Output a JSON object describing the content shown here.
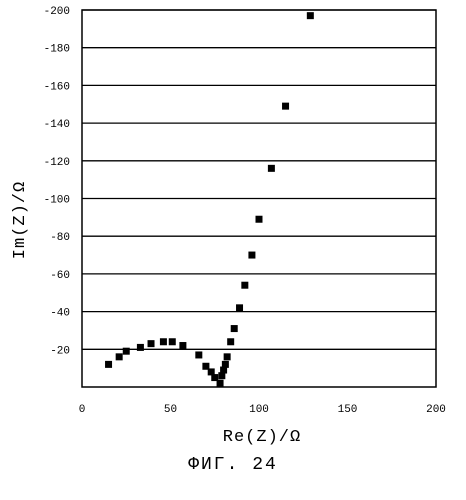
{
  "caption": "ФИГ. 24",
  "chart_data": {
    "type": "scatter",
    "title": "",
    "xlabel": "Re(Z)/Ω",
    "ylabel": "Im(Z)/Ω",
    "xlim": [
      0,
      200
    ],
    "ylim": [
      0,
      -200
    ],
    "y_axis_inverted": true,
    "grid": "horizontal",
    "x_ticks": [
      {
        "value": 0,
        "label": "0"
      },
      {
        "value": 50,
        "label": "50"
      },
      {
        "value": 100,
        "label": "100"
      },
      {
        "value": 150,
        "label": "150"
      },
      {
        "value": 200,
        "label": "200"
      }
    ],
    "y_ticks": [
      {
        "value": -20,
        "label": "-20"
      },
      {
        "value": -40,
        "label": "-40"
      },
      {
        "value": -60,
        "label": "-60"
      },
      {
        "value": -80,
        "label": "-80"
      },
      {
        "value": -100,
        "label": "-100"
      },
      {
        "value": -120,
        "label": "-120"
      },
      {
        "value": -140,
        "label": "-140"
      },
      {
        "value": -160,
        "label": "-160"
      },
      {
        "value": -180,
        "label": "-180"
      },
      {
        "value": -200,
        "label": "-200"
      }
    ],
    "marker": "square",
    "marker_color": "#000000",
    "points": [
      {
        "x": 15,
        "y": -12
      },
      {
        "x": 21,
        "y": -16
      },
      {
        "x": 25,
        "y": -19
      },
      {
        "x": 33,
        "y": -21
      },
      {
        "x": 39,
        "y": -23
      },
      {
        "x": 46,
        "y": -24
      },
      {
        "x": 51,
        "y": -24
      },
      {
        "x": 57,
        "y": -22
      },
      {
        "x": 66,
        "y": -17
      },
      {
        "x": 70,
        "y": -11
      },
      {
        "x": 73,
        "y": -8
      },
      {
        "x": 75,
        "y": -5
      },
      {
        "x": 78,
        "y": -2
      },
      {
        "x": 79,
        "y": -6
      },
      {
        "x": 80,
        "y": -9
      },
      {
        "x": 81,
        "y": -12
      },
      {
        "x": 82,
        "y": -16
      },
      {
        "x": 84,
        "y": -24
      },
      {
        "x": 86,
        "y": -31
      },
      {
        "x": 89,
        "y": -42
      },
      {
        "x": 92,
        "y": -54
      },
      {
        "x": 96,
        "y": -70
      },
      {
        "x": 100,
        "y": -89
      },
      {
        "x": 107,
        "y": -116
      },
      {
        "x": 115,
        "y": -149
      },
      {
        "x": 129,
        "y": -197
      }
    ]
  }
}
